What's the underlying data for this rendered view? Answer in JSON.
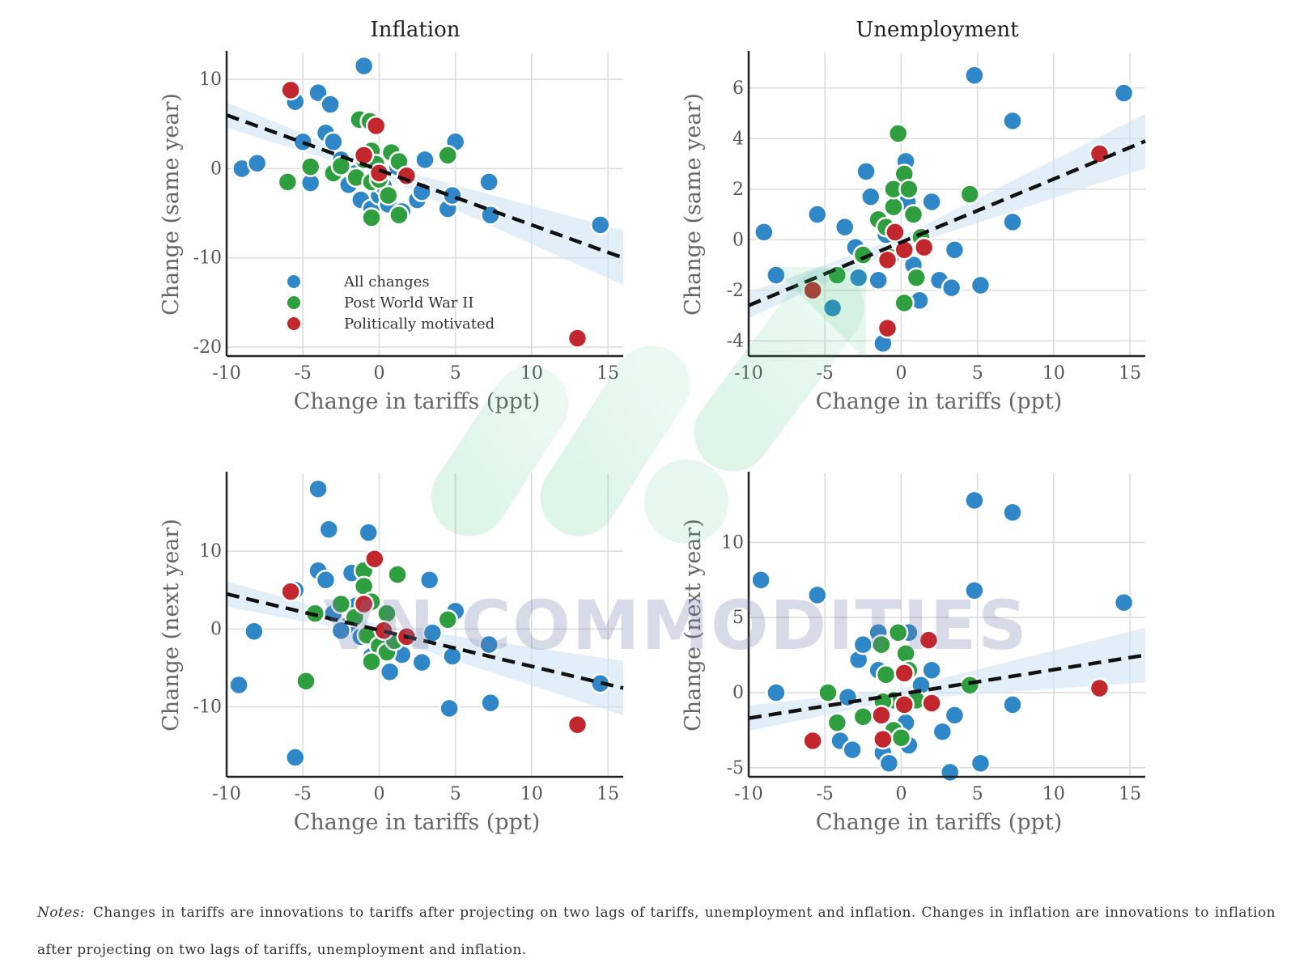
{
  "chart_data": [
    {
      "type": "scatter",
      "title": "Inflation",
      "xlabel": "Change in tariffs (ppt)",
      "ylabel": "Change (same year)",
      "xlim": [
        -10,
        16
      ],
      "ylim": [
        -21,
        13
      ],
      "xticks": [
        -10,
        -5,
        0,
        5,
        10,
        15
      ],
      "yticks": [
        -20,
        -10,
        0,
        10
      ],
      "grid": true,
      "legend_position": "lower-left",
      "fit_line": {
        "x": [
          -10,
          16
        ],
        "y": [
          6,
          -10
        ]
      },
      "series": [
        {
          "name": "All changes",
          "color": "#2f87c8",
          "points": [
            [
              -9,
              0
            ],
            [
              -8,
              0.6
            ],
            [
              -5.5,
              7.5
            ],
            [
              -4,
              8.5
            ],
            [
              -3.2,
              7.2
            ],
            [
              -5,
              3
            ],
            [
              -3.5,
              4
            ],
            [
              -3,
              3
            ],
            [
              -2.5,
              1
            ],
            [
              -2,
              -1.5
            ],
            [
              -1.5,
              -0.5
            ],
            [
              -1,
              11.5
            ],
            [
              -1.2,
              -3.5
            ],
            [
              -0.5,
              -4.5
            ],
            [
              0,
              -3
            ],
            [
              0.6,
              -4
            ],
            [
              1.5,
              -4.8
            ],
            [
              2.5,
              -3.5
            ],
            [
              3,
              1
            ],
            [
              4.5,
              -4.5
            ],
            [
              5,
              3
            ],
            [
              4.8,
              -3
            ],
            [
              7.2,
              -1.5
            ],
            [
              7.3,
              -5.2
            ],
            [
              14.5,
              -6.3
            ],
            [
              -2,
              -1.8
            ],
            [
              0.3,
              -2
            ],
            [
              2.8,
              -2.6
            ],
            [
              -4.5,
              -1.6
            ],
            [
              1.2,
              0.2
            ]
          ]
        },
        {
          "name": "Post World War II",
          "color": "#2e9e3e",
          "points": [
            [
              -6,
              -1.5
            ],
            [
              -4.5,
              0.2
            ],
            [
              -3,
              -0.5
            ],
            [
              -2.5,
              0.3
            ],
            [
              -1.3,
              5.5
            ],
            [
              -0.6,
              5.3
            ],
            [
              -1.5,
              -1
            ],
            [
              -0.5,
              -1.5
            ],
            [
              0,
              -1.2
            ],
            [
              -0.5,
              2
            ],
            [
              0.8,
              1.8
            ],
            [
              1.3,
              0.8
            ],
            [
              -0.5,
              -5.5
            ],
            [
              1.3,
              -5.2
            ],
            [
              4.5,
              1.5
            ],
            [
              0.6,
              -3
            ],
            [
              -1,
              1
            ],
            [
              -0.2,
              0.5
            ]
          ]
        },
        {
          "name": "Politically motivated",
          "color": "#c2272d",
          "points": [
            [
              -5.8,
              8.8
            ],
            [
              -0.2,
              4.8
            ],
            [
              -1,
              1.5
            ],
            [
              0,
              -0.5
            ],
            [
              1.8,
              -0.8
            ],
            [
              13,
              -19
            ]
          ]
        }
      ]
    },
    {
      "type": "scatter",
      "title": "Unemployment",
      "xlabel": "Change in tariffs (ppt)",
      "ylabel": "Change (same year)",
      "xlim": [
        -10,
        16
      ],
      "ylim": [
        -4.6,
        7.4
      ],
      "xticks": [
        -10,
        -5,
        0,
        5,
        10,
        15
      ],
      "yticks": [
        -4,
        -2,
        0,
        2,
        4,
        6
      ],
      "grid": true,
      "fit_line": {
        "x": [
          -10,
          16
        ],
        "y": [
          -2.6,
          3.9
        ]
      },
      "series": [
        {
          "name": "All changes",
          "color": "#2f87c8",
          "points": [
            [
              -9,
              0.3
            ],
            [
              -8.2,
              -1.4
            ],
            [
              -5.5,
              1
            ],
            [
              -4.5,
              -2.7
            ],
            [
              -3.7,
              0.5
            ],
            [
              -3,
              -0.3
            ],
            [
              -2.3,
              2.7
            ],
            [
              -2,
              1.7
            ],
            [
              -1.5,
              -1.6
            ],
            [
              -0.5,
              2
            ],
            [
              -1.2,
              -4.1
            ],
            [
              0.3,
              3.1
            ],
            [
              0.4,
              1.5
            ],
            [
              -2.8,
              -1.5
            ],
            [
              1.2,
              -2.4
            ],
            [
              2,
              1.5
            ],
            [
              2.5,
              -1.6
            ],
            [
              3.3,
              -1.9
            ],
            [
              3.5,
              -0.4
            ],
            [
              4.8,
              6.5
            ],
            [
              5.2,
              -1.8
            ],
            [
              7.3,
              4.7
            ],
            [
              7.3,
              0.7
            ],
            [
              14.6,
              5.8
            ],
            [
              -1,
              0.2
            ],
            [
              0.8,
              -1
            ]
          ]
        },
        {
          "name": "Post World War II",
          "color": "#2e9e3e",
          "points": [
            [
              -4.2,
              -1.4
            ],
            [
              -2.5,
              -0.6
            ],
            [
              -1.5,
              0.8
            ],
            [
              -0.5,
              1.3
            ],
            [
              -0.2,
              4.2
            ],
            [
              -0.5,
              2
            ],
            [
              0.2,
              2.6
            ],
            [
              0.5,
              2
            ],
            [
              0.8,
              1
            ],
            [
              1,
              -1.5
            ],
            [
              -0.7,
              -0.7
            ],
            [
              0.2,
              -2.5
            ],
            [
              4.5,
              1.8
            ],
            [
              -1,
              0.5
            ],
            [
              1.3,
              0.1
            ]
          ]
        },
        {
          "name": "Politically motivated",
          "color": "#c2272d",
          "points": [
            [
              -5.8,
              -2
            ],
            [
              -0.4,
              0.3
            ],
            [
              0.2,
              -0.4
            ],
            [
              -0.9,
              -0.8
            ],
            [
              1.5,
              -0.3
            ],
            [
              -0.9,
              -3.5
            ],
            [
              13,
              3.4
            ]
          ]
        }
      ]
    },
    {
      "type": "scatter",
      "title": "",
      "xlabel": "Change in tariffs (ppt)",
      "ylabel": "Change (next year)",
      "xlim": [
        -10,
        16
      ],
      "ylim": [
        -19,
        20
      ],
      "xticks": [
        -10,
        -5,
        0,
        5,
        10,
        15
      ],
      "yticks": [
        -10,
        0,
        10
      ],
      "grid": true,
      "fit_line": {
        "x": [
          -10,
          16
        ],
        "y": [
          4.5,
          -7.6
        ]
      },
      "series": [
        {
          "name": "All changes",
          "color": "#2f87c8",
          "points": [
            [
              -9.2,
              -7.2
            ],
            [
              -8.2,
              -0.3
            ],
            [
              -5.5,
              5
            ],
            [
              -4,
              18
            ],
            [
              -3.3,
              12.8
            ],
            [
              -4,
              7.5
            ],
            [
              -3.5,
              6.3
            ],
            [
              -1.8,
              7.2
            ],
            [
              -3,
              2
            ],
            [
              -2,
              0.5
            ],
            [
              -1.2,
              -1
            ],
            [
              -0.7,
              12.4
            ],
            [
              -0.5,
              -3.5
            ],
            [
              0.7,
              -5.5
            ],
            [
              1.5,
              -3.3
            ],
            [
              2.8,
              -4.3
            ],
            [
              3.3,
              6.3
            ],
            [
              3.5,
              -0.5
            ],
            [
              4.8,
              -3.5
            ],
            [
              5,
              2.3
            ],
            [
              4.6,
              -10.2
            ],
            [
              7.2,
              -2
            ],
            [
              7.3,
              -9.5
            ],
            [
              14.5,
              -7
            ],
            [
              -5.5,
              -16.5
            ],
            [
              -1.5,
              3
            ],
            [
              0.4,
              2
            ],
            [
              -2.5,
              -0.2
            ]
          ]
        },
        {
          "name": "Post World War II",
          "color": "#2e9e3e",
          "points": [
            [
              -4.8,
              -6.7
            ],
            [
              -4.2,
              2
            ],
            [
              -2.5,
              3.2
            ],
            [
              -1,
              7.5
            ],
            [
              -1,
              5.5
            ],
            [
              -0.5,
              3.5
            ],
            [
              0.5,
              2
            ],
            [
              -0.8,
              -0.8
            ],
            [
              0,
              -2.2
            ],
            [
              0.5,
              -3
            ],
            [
              1.2,
              7
            ],
            [
              4.5,
              1.2
            ],
            [
              -0.5,
              -4.2
            ],
            [
              1,
              -1.5
            ],
            [
              -1.6,
              1.5
            ]
          ]
        },
        {
          "name": "Politically motivated",
          "color": "#c2272d",
          "points": [
            [
              -5.8,
              4.8
            ],
            [
              -0.3,
              9
            ],
            [
              -1,
              3.2
            ],
            [
              0.3,
              -0.2
            ],
            [
              1.8,
              -1
            ],
            [
              13,
              -12.3
            ]
          ]
        }
      ]
    },
    {
      "type": "scatter",
      "title": "",
      "xlabel": "Change in tariffs (ppt)",
      "ylabel": "Change (next year)",
      "xlim": [
        -10,
        16
      ],
      "ylim": [
        -5.6,
        14.6
      ],
      "xticks": [
        -10,
        -5,
        0,
        5,
        10,
        15
      ],
      "yticks": [
        -5,
        0,
        5,
        10
      ],
      "grid": true,
      "fit_line": {
        "x": [
          -10,
          16
        ],
        "y": [
          -1.7,
          2.5
        ]
      },
      "series": [
        {
          "name": "All changes",
          "color": "#2f87c8",
          "points": [
            [
              -9.2,
              7.5
            ],
            [
              -8.2,
              0
            ],
            [
              -5.5,
              6.5
            ],
            [
              -4,
              -3.2
            ],
            [
              -3.5,
              -0.3
            ],
            [
              -3.2,
              -3.8
            ],
            [
              -2.8,
              2.2
            ],
            [
              -2.5,
              3.2
            ],
            [
              -1.5,
              4
            ],
            [
              -1.2,
              -4
            ],
            [
              -0.8,
              -4.7
            ],
            [
              0.5,
              4
            ],
            [
              0.5,
              -3.5
            ],
            [
              1.3,
              0.5
            ],
            [
              2,
              1.5
            ],
            [
              2.7,
              -2.6
            ],
            [
              3.2,
              -5.3
            ],
            [
              3.5,
              -1.5
            ],
            [
              4.8,
              12.8
            ],
            [
              4.8,
              6.8
            ],
            [
              5.2,
              -4.7
            ],
            [
              7.3,
              12
            ],
            [
              7.3,
              -0.8
            ],
            [
              14.6,
              6
            ],
            [
              -1.5,
              1.5
            ],
            [
              0.3,
              -2
            ]
          ]
        },
        {
          "name": "Post World War II",
          "color": "#2e9e3e",
          "points": [
            [
              -4.8,
              0
            ],
            [
              -4.2,
              -2
            ],
            [
              -2.5,
              -1.6
            ],
            [
              -1.3,
              3.2
            ],
            [
              -0.2,
              4
            ],
            [
              0.3,
              2.6
            ],
            [
              -1,
              1.2
            ],
            [
              0.5,
              1.5
            ],
            [
              -0.5,
              -0.5
            ],
            [
              1,
              -0.5
            ],
            [
              -0.5,
              -2.5
            ],
            [
              4.5,
              0.5
            ],
            [
              0,
              -3
            ],
            [
              -1.2,
              -0.6
            ]
          ]
        },
        {
          "name": "Politically motivated",
          "color": "#c2272d",
          "points": [
            [
              -5.8,
              -3.2
            ],
            [
              -1.3,
              -1.5
            ],
            [
              0.2,
              1.3
            ],
            [
              0.2,
              -0.8
            ],
            [
              1.8,
              3.5
            ],
            [
              2,
              -0.7
            ],
            [
              -1.2,
              -3.1
            ],
            [
              13,
              0.3
            ]
          ]
        }
      ]
    }
  ],
  "watermark": "VN COMMODITIES",
  "notes": {
    "label": "Notes:",
    "text": "Changes in tariffs are innovations to tariffs after projecting on two lags of tariffs, unemployment and inflation. Changes in inflation are innovations to inflation after projecting on two lags of tariffs, unemployment and inflation."
  }
}
